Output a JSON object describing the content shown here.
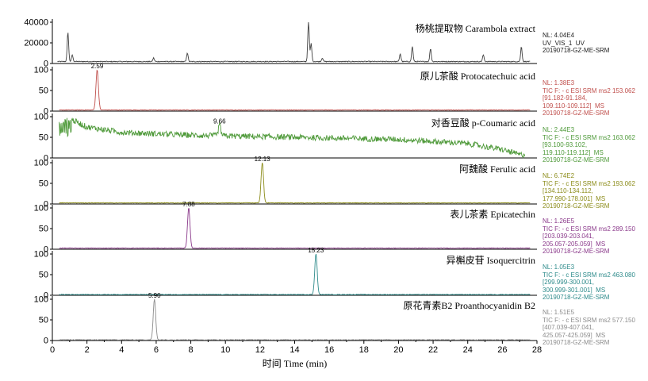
{
  "chart_data": {
    "type": "line",
    "xlabel": "时间 Time (min)",
    "xlim": [
      0,
      28
    ],
    "x_ticks": [
      0,
      2,
      4,
      6,
      8,
      10,
      12,
      14,
      16,
      18,
      20,
      22,
      24,
      26,
      28
    ],
    "panels": [
      {
        "name": "杨桃提取物 Carambola extract",
        "color": "#404040",
        "ylim": [
          0,
          40000
        ],
        "y_ticks": [
          0,
          20000,
          40000
        ],
        "baseline": 1500,
        "peaks": [
          {
            "x": 0.9,
            "y": 30000
          },
          {
            "x": 1.15,
            "y": 8000
          },
          {
            "x": 5.85,
            "y": 5000
          },
          {
            "x": 7.8,
            "y": 10000
          },
          {
            "x": 14.8,
            "y": 41000
          },
          {
            "x": 14.95,
            "y": 19000
          },
          {
            "x": 15.6,
            "y": 5000
          },
          {
            "x": 20.1,
            "y": 9000
          },
          {
            "x": 20.8,
            "y": 16000
          },
          {
            "x": 21.85,
            "y": 14000
          },
          {
            "x": 24.9,
            "y": 8000
          },
          {
            "x": 27.1,
            "y": 16000
          }
        ],
        "side_text": [
          "NL: 4.04E4",
          "UV_VIS_1  UV",
          "20190718-GZ-ME-SRM"
        ]
      },
      {
        "name": "原儿茶酸 Protocatechuic acid",
        "color": "#c0504d",
        "ylim": [
          0,
          100
        ],
        "y_ticks": [
          0,
          50,
          100
        ],
        "baseline": 2,
        "peaks": [
          {
            "x": 2.59,
            "y": 100,
            "label": "2.59"
          }
        ],
        "side_text": [
          "NL: 1.38E3",
          "TIC F: - c ESI SRM ms2 153.062",
          "[91.182-91.184,",
          "109.110-109.112]  MS",
          "20190718-GZ-ME-SRM"
        ]
      },
      {
        "name": "对香豆酸 p-Coumaric acid",
        "color": "#4f9a3a",
        "ylim": [
          0,
          100
        ],
        "y_ticks": [
          0,
          50,
          100
        ],
        "baseline": 5,
        "noise_profile": [
          {
            "x": 0.3,
            "y": 80
          },
          {
            "x": 1.0,
            "y": 95
          },
          {
            "x": 2.0,
            "y": 75
          },
          {
            "x": 4.0,
            "y": 62
          },
          {
            "x": 8.0,
            "y": 55
          },
          {
            "x": 14.0,
            "y": 50
          },
          {
            "x": 20.0,
            "y": 45
          },
          {
            "x": 24.0,
            "y": 35
          },
          {
            "x": 26.0,
            "y": 20
          },
          {
            "x": 27.0,
            "y": 8
          }
        ],
        "peaks": [
          {
            "x": 9.66,
            "y": 80,
            "label": "9.66"
          }
        ],
        "side_text": [
          "NL: 2.44E3",
          "TIC F: - c ESI SRM ms2 163.062",
          "[93.100-93.102,",
          "119.110-119.112]  MS",
          "20190718-GZ-ME-SRM"
        ]
      },
      {
        "name": "阿魏酸 Ferulic acid",
        "color": "#8c8c1a",
        "ylim": [
          0,
          100
        ],
        "y_ticks": [
          0,
          50,
          100
        ],
        "baseline": 2,
        "peaks": [
          {
            "x": 12.13,
            "y": 100,
            "label": "12.13"
          }
        ],
        "side_text": [
          "NL: 6.74E2",
          "TIC F: - c ESI SRM ms2 193.062",
          "[134.110-134.112,",
          "177.990-178.001]  MS",
          "20190718-GZ-ME-SRM"
        ]
      },
      {
        "name": "表儿茶素 Epicatechin",
        "color": "#8b3a8b",
        "ylim": [
          0,
          100
        ],
        "y_ticks": [
          0,
          50,
          100
        ],
        "baseline": 2,
        "peaks": [
          {
            "x": 7.88,
            "y": 100,
            "label": "7.88"
          }
        ],
        "side_text": [
          "NL: 1.26E5",
          "TIC F: - c ESI SRM ms2 289.150",
          "[203.039-203.041,",
          "205.057-205.059]  MS",
          "20190718-GZ-ME-SRM"
        ]
      },
      {
        "name": "异槲皮苷 Isoquercitrin",
        "color": "#2e8b8b",
        "ylim": [
          0,
          100
        ],
        "y_ticks": [
          0,
          50,
          100
        ],
        "baseline": 1,
        "peaks": [
          {
            "x": 15.23,
            "y": 100,
            "label": "15.23"
          }
        ],
        "side_text": [
          "NL: 1.05E3",
          "TIC F: - c ESI SRM ms2 463.080",
          "[299.999-300.001,",
          "300.999-301.001]  MS",
          "20190718-GZ-ME-SRM"
        ]
      },
      {
        "name": "原花青素B2 Proanthocyanidin B2",
        "color": "#8c8c8c",
        "ylim": [
          0,
          100
        ],
        "y_ticks": [
          0,
          50,
          100
        ],
        "baseline": 1,
        "peaks": [
          {
            "x": 5.9,
            "y": 100,
            "label": "5.90"
          }
        ],
        "side_text": [
          "NL: 1.51E5",
          "TIC F: - c ESI SRM ms2 577.150",
          "[407.039-407.041,",
          "425.057-425.059]  MS",
          "20190718-GZ-ME-SRM"
        ]
      }
    ]
  }
}
